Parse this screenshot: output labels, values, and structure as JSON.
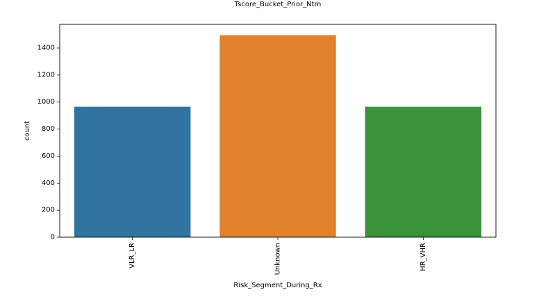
{
  "chart_data": {
    "type": "bar",
    "title": "Tscore_Bucket_Prior_Ntm",
    "xlabel": "Risk_Segment_During_Rx",
    "ylabel": "count",
    "categories": [
      "VLR_LR",
      "Unknown",
      "HR_VHR"
    ],
    "values": [
      965,
      1495,
      965
    ],
    "colors": [
      "#3274a1",
      "#e1812c",
      "#3a923a"
    ],
    "ylim": [
      0,
      1575
    ],
    "yticks": [
      0,
      200,
      400,
      600,
      800,
      1000,
      1200,
      1400
    ],
    "grid": false,
    "legend": "none"
  }
}
